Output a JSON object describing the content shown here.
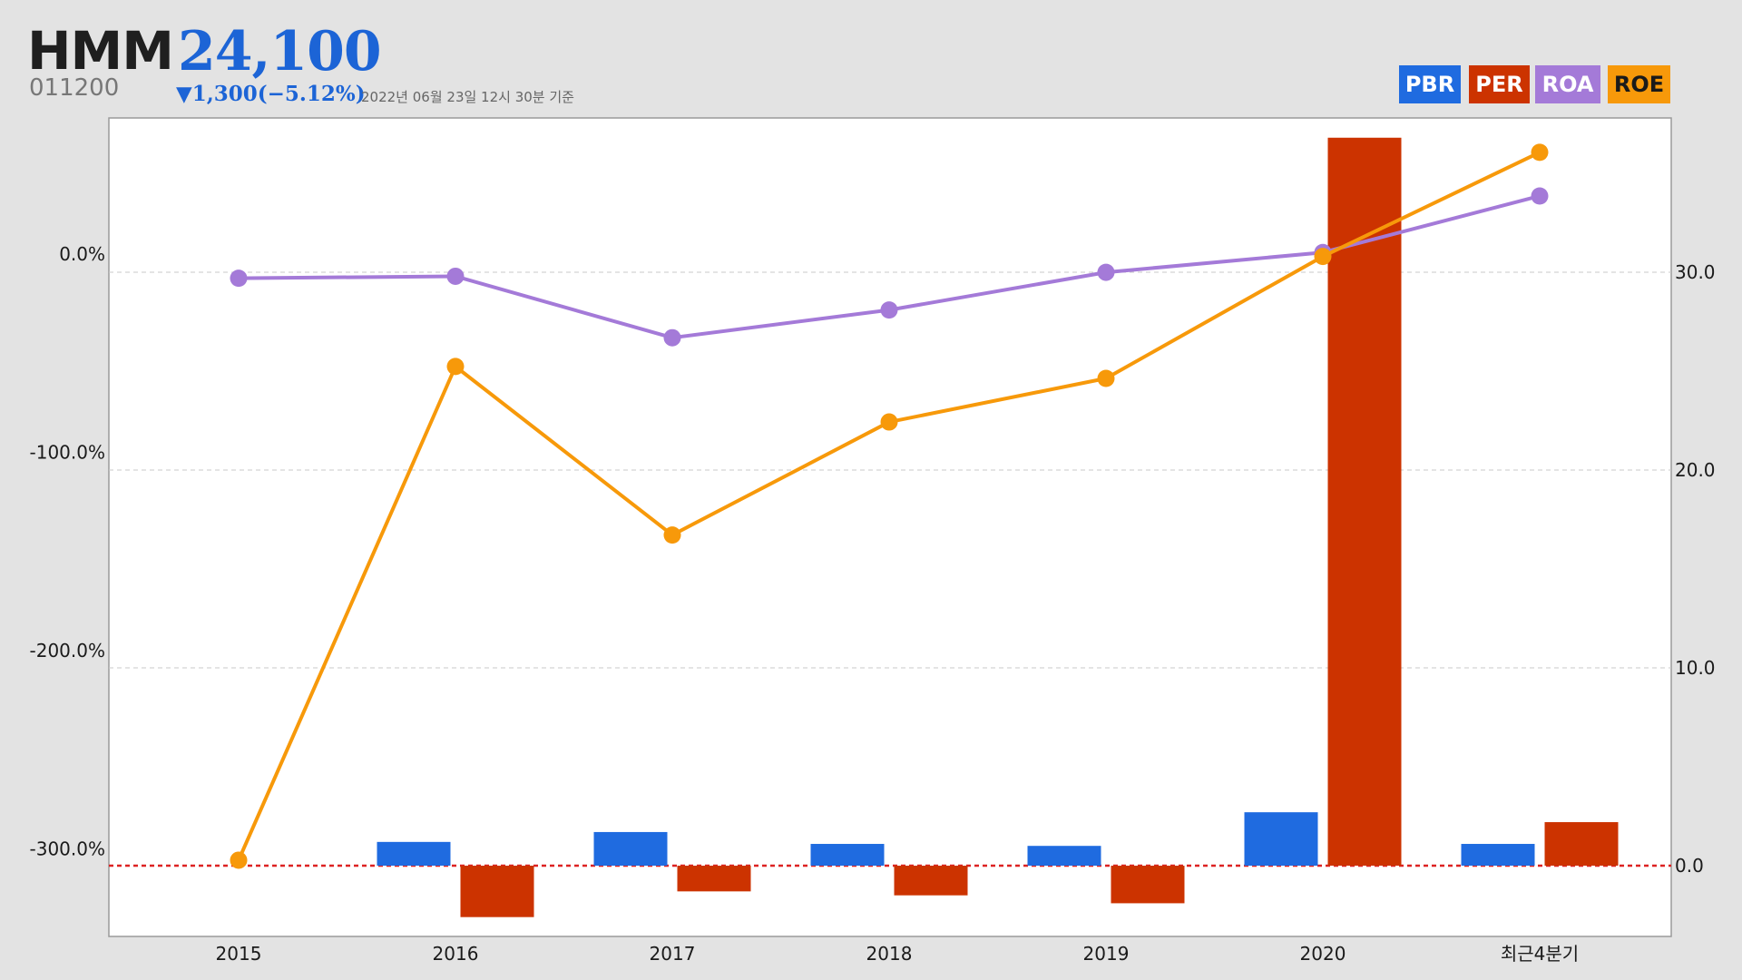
{
  "header": {
    "name": "HMM",
    "price": "24,100",
    "code": "011200",
    "change": "▼1,300(−5.12%)",
    "timestamp": "2022년 06월 23일 12시 30분 기준"
  },
  "colors": {
    "PBR": "#1f6be0",
    "PER": "#cc3300",
    "ROA": "#a47ad8",
    "ROE": "#f7990a",
    "price": "#1c64d6",
    "zero_line": "#dd2222",
    "grid": "#c8c8c8"
  },
  "legend": [
    {
      "label": "PBR",
      "key": "PBR"
    },
    {
      "label": "PER",
      "key": "PER"
    },
    {
      "label": "ROA",
      "key": "ROA"
    },
    {
      "label": "ROE",
      "key": "ROE"
    }
  ],
  "chart_data": {
    "type": "bar+line",
    "categories": [
      "2015",
      "2016",
      "2017",
      "2018",
      "2019",
      "2020",
      "최근4분기"
    ],
    "bar_series": [
      {
        "name": "PBR",
        "axis": "right",
        "values": [
          0.0,
          1.2,
          1.7,
          1.1,
          1.0,
          2.7,
          1.1
        ]
      },
      {
        "name": "PER",
        "axis": "right",
        "values": [
          0.0,
          -2.6,
          -1.3,
          -1.5,
          -1.9,
          36.8,
          2.2
        ]
      }
    ],
    "line_series": [
      {
        "name": "ROA",
        "axis": "left",
        "values": [
          -3.5,
          -2.5,
          -33.5,
          -19.5,
          -0.5,
          9.5,
          38.0
        ]
      },
      {
        "name": "ROE",
        "axis": "left",
        "values": [
          -297.0,
          -48.0,
          -133.0,
          -76.0,
          -54.0,
          7.5,
          60.0
        ]
      }
    ],
    "left_axis": {
      "ticks": [
        0,
        -100,
        -200,
        -300
      ],
      "tick_labels": [
        "0.0%",
        "-100.0%",
        "-200.0%",
        "-300.0%"
      ]
    },
    "right_axis": {
      "ticks": [
        0,
        10,
        20,
        30
      ],
      "tick_labels": [
        "0.0",
        "10.0",
        "20.0",
        "30.0"
      ]
    },
    "grid": true,
    "legend_position": "top-right"
  }
}
